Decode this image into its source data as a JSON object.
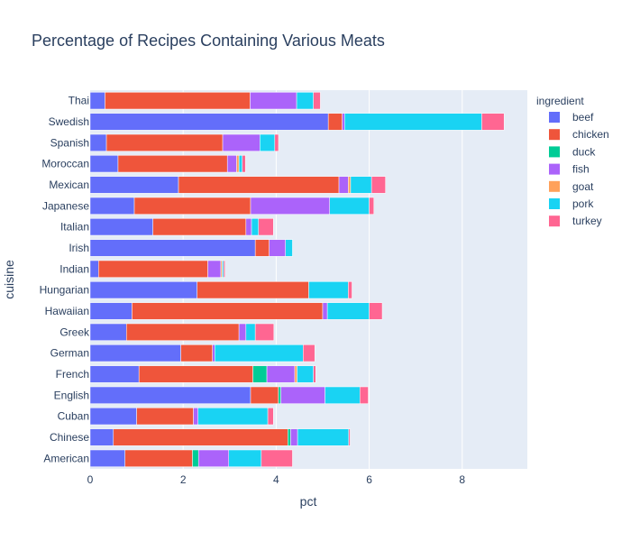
{
  "chart_data": {
    "type": "bar",
    "orientation": "horizontal",
    "barmode": "stack",
    "title": "Percentage of Recipes Containing Various Meats",
    "xlabel": "pct",
    "ylabel": "cuisine",
    "xlim": [
      0,
      9.4
    ],
    "xticks": [
      0,
      2,
      4,
      6,
      8
    ],
    "grid": true,
    "legend_title": "ingredient",
    "legend_position": "right",
    "categories": [
      "American",
      "Chinese",
      "Cuban",
      "English",
      "French",
      "German",
      "Greek",
      "Hawaiian",
      "Hungarian",
      "Indian",
      "Irish",
      "Italian",
      "Japanese",
      "Mexican",
      "Moroccan",
      "Spanish",
      "Swedish",
      "Thai"
    ],
    "series": [
      {
        "name": "beef",
        "color": "#636efa",
        "values": [
          0.75,
          0.5,
          1.0,
          3.45,
          1.05,
          1.95,
          0.78,
          0.9,
          2.3,
          0.18,
          3.55,
          1.35,
          0.95,
          1.9,
          0.6,
          0.35,
          5.12,
          0.32
        ]
      },
      {
        "name": "chicken",
        "color": "#ef553b",
        "values": [
          1.45,
          3.75,
          1.22,
          0.6,
          2.45,
          0.68,
          2.42,
          4.1,
          2.4,
          2.35,
          0.3,
          2.0,
          2.5,
          3.45,
          2.35,
          2.5,
          0.3,
          3.12
        ]
      },
      {
        "name": "duck",
        "color": "#00cc96",
        "values": [
          0.13,
          0.06,
          0.0,
          0.05,
          0.3,
          0.0,
          0.0,
          0.0,
          0.0,
          0.0,
          0.0,
          0.0,
          0.0,
          0.0,
          0.0,
          0.0,
          0.0,
          0.0
        ]
      },
      {
        "name": "fish",
        "color": "#ab63fa",
        "values": [
          0.65,
          0.15,
          0.1,
          0.95,
          0.6,
          0.05,
          0.15,
          0.1,
          0.0,
          0.28,
          0.35,
          0.12,
          1.7,
          0.2,
          0.2,
          0.8,
          0.05,
          1.0
        ]
      },
      {
        "name": "goat",
        "color": "#ffa15a",
        "values": [
          0.0,
          0.0,
          0.0,
          0.0,
          0.05,
          0.0,
          0.0,
          0.0,
          0.0,
          0.03,
          0.0,
          0.0,
          0.0,
          0.05,
          0.05,
          0.0,
          0.0,
          0.0
        ]
      },
      {
        "name": "pork",
        "color": "#19d3f3",
        "values": [
          0.7,
          1.1,
          1.5,
          0.75,
          0.35,
          1.9,
          0.2,
          0.9,
          0.85,
          0.03,
          0.15,
          0.15,
          0.85,
          0.45,
          0.07,
          0.32,
          2.95,
          0.36
        ]
      },
      {
        "name": "turkey",
        "color": "#ff6692",
        "values": [
          0.67,
          0.03,
          0.12,
          0.18,
          0.05,
          0.25,
          0.4,
          0.28,
          0.08,
          0.03,
          0.0,
          0.32,
          0.1,
          0.3,
          0.07,
          0.08,
          0.48,
          0.15
        ]
      }
    ]
  }
}
